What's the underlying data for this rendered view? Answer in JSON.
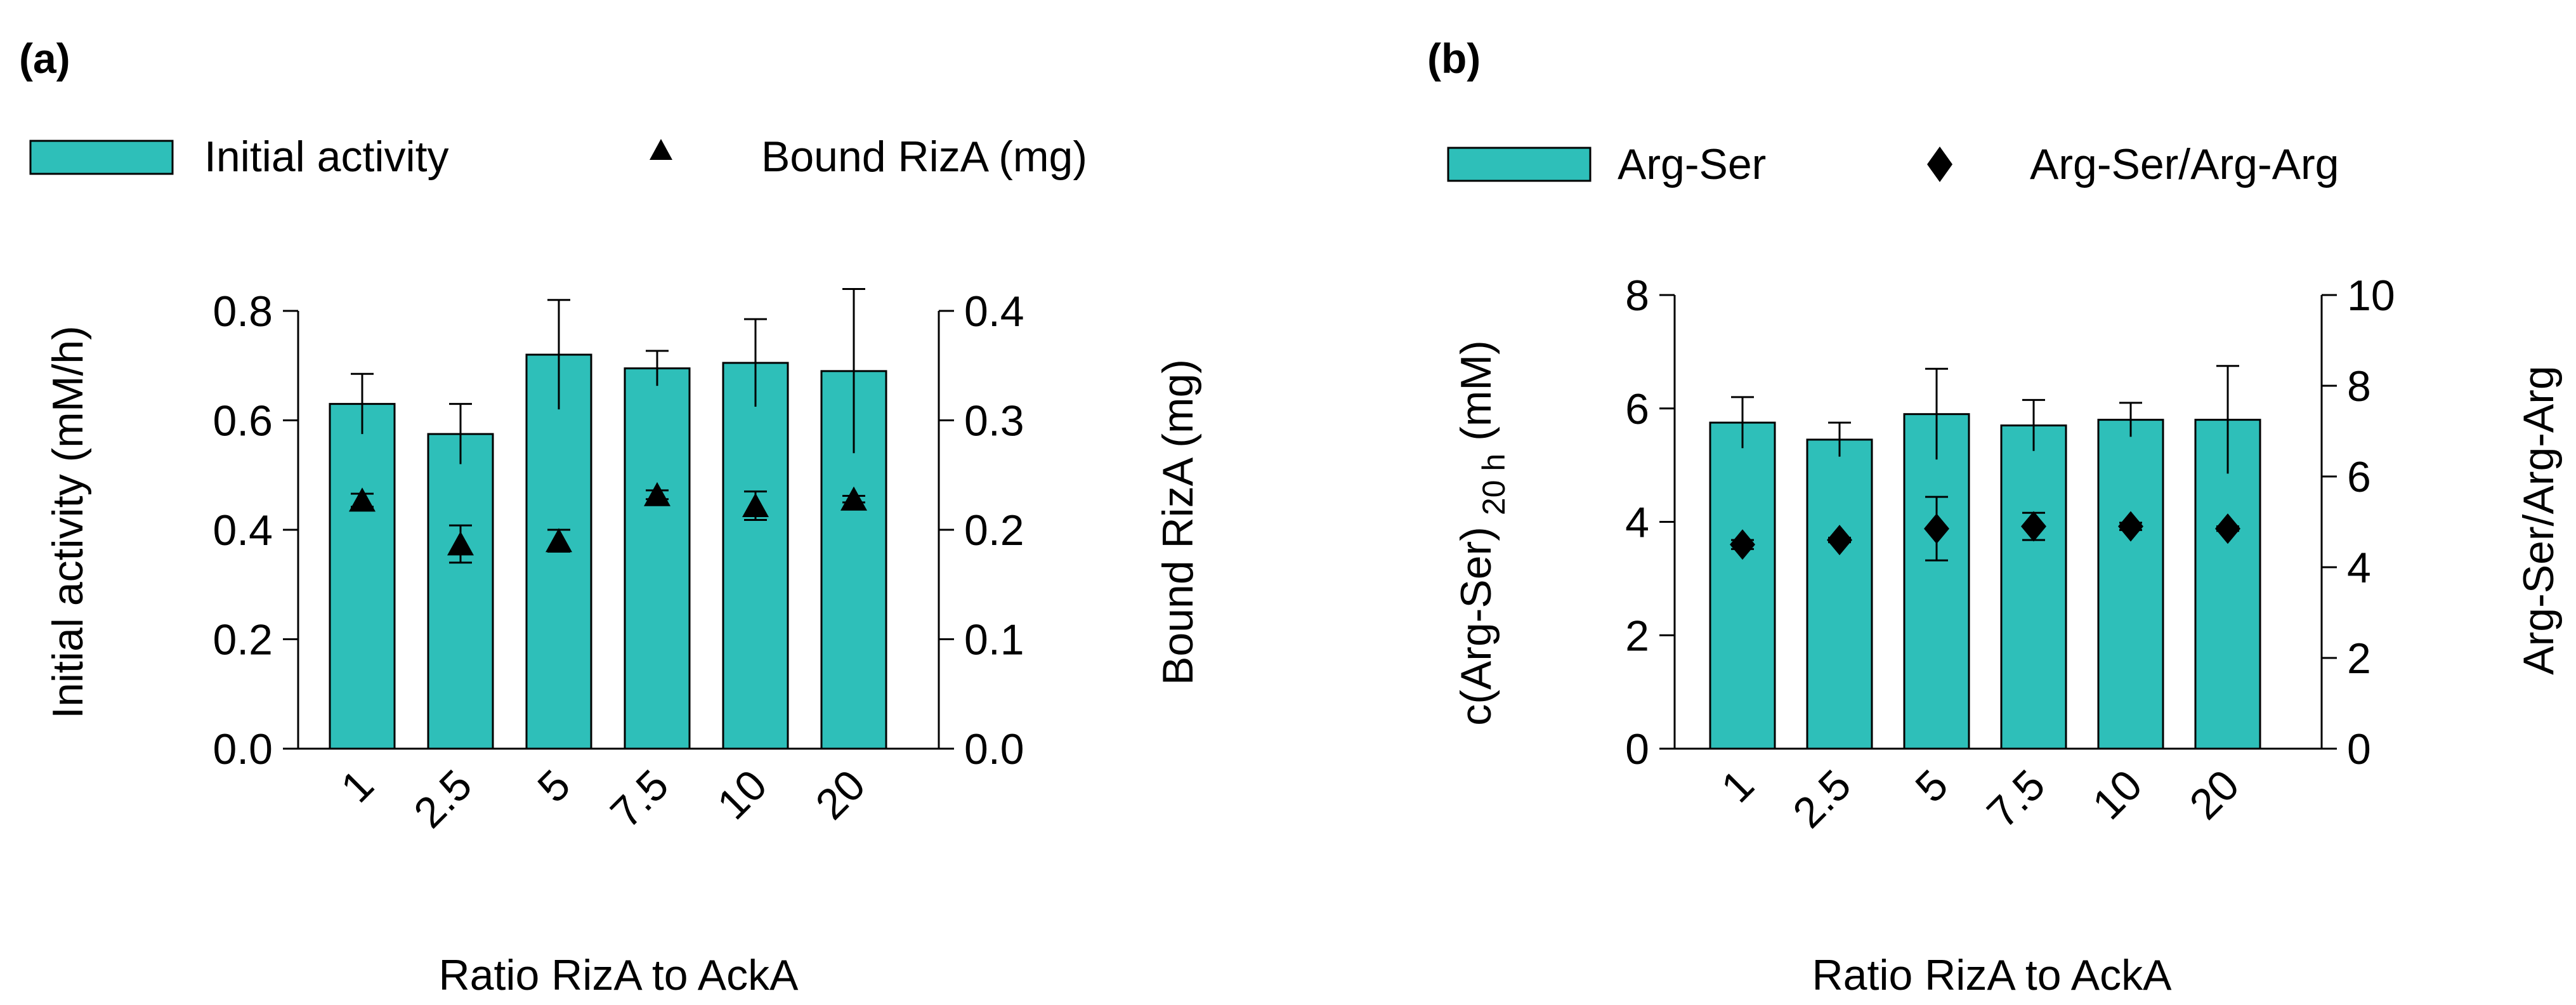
{
  "chart_data": [
    {
      "panel_label": "(a)",
      "type": "bar",
      "xlabel": "Ratio RizA to AckA",
      "categories": [
        "1",
        "2.5",
        "5",
        "7.5",
        "10",
        "20"
      ],
      "bars": {
        "name": "Initial activity",
        "values": [
          0.63,
          0.575,
          0.72,
          0.695,
          0.705,
          0.69
        ],
        "errors": [
          0.055,
          0.055,
          0.1,
          0.032,
          0.08,
          0.15
        ],
        "color": "#2ebfb9"
      },
      "markers": {
        "name": "Bound RizA (mg)",
        "shape": "triangle",
        "values": [
          0.227,
          0.187,
          0.19,
          0.232,
          0.222,
          0.228
        ],
        "errors": [
          0.006,
          0.017,
          0.01,
          0.004,
          0.013,
          0.003
        ]
      },
      "y_left": {
        "label": "Initial activity (mM/h)",
        "ylim": [
          0,
          0.8
        ],
        "ticks": [
          "0.0",
          "0.2",
          "0.4",
          "0.6",
          "0.8"
        ]
      },
      "y_right": {
        "label": "Bound RizA (mg)",
        "ylim": [
          0,
          0.4
        ],
        "ticks": [
          "0.0",
          "0.1",
          "0.2",
          "0.3",
          "0.4"
        ]
      },
      "legend_position": "top"
    },
    {
      "panel_label": "(b)",
      "type": "bar",
      "xlabel": "Ratio RizA to AckA",
      "categories": [
        "1",
        "2.5",
        "5",
        "7.5",
        "10",
        "20"
      ],
      "bars": {
        "name": "Arg-Ser",
        "values": [
          5.75,
          5.45,
          5.9,
          5.7,
          5.8,
          5.8
        ],
        "errors": [
          0.45,
          0.3,
          0.8,
          0.45,
          0.3,
          0.95
        ],
        "color": "#2ebfb9"
      },
      "markers": {
        "name": "Arg-Ser/Arg-Arg",
        "shape": "diamond",
        "values": [
          4.5,
          4.6,
          4.85,
          4.9,
          4.9,
          4.85
        ],
        "errors": [
          0.1,
          0.05,
          0.7,
          0.3,
          0.08,
          0.05
        ]
      },
      "y_left": {
        "label_main": "c(Arg-Ser)",
        "label_sub": "20 h",
        "label_unit": "(mM)",
        "ylim": [
          0,
          8
        ],
        "ticks": [
          "0",
          "2",
          "4",
          "6",
          "8"
        ]
      },
      "y_right": {
        "label": "Arg-Ser/Arg-Arg",
        "ylim": [
          0,
          10
        ],
        "ticks": [
          "0",
          "2",
          "4",
          "6",
          "8",
          "10"
        ]
      },
      "legend_position": "top"
    }
  ]
}
